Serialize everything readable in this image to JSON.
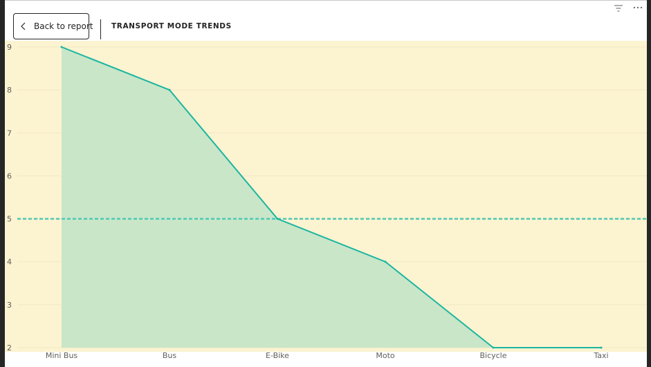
{
  "header": {
    "back_label": "Back to report",
    "title": "TRANSPORT MODE TRENDS"
  },
  "icons": {
    "back": "chevron-left-icon",
    "filter": "filter-icon",
    "more": "more-options-icon"
  },
  "colors": {
    "plot_background": "#fcf3d1",
    "line": "#1ab5a0",
    "area_fill": "#c9e6c8",
    "reference_line": "#4fc8b4"
  },
  "chart_data": {
    "type": "area",
    "categories": [
      "Mini Bus",
      "Bus",
      "E-Bike",
      "Moto",
      "Bicycle",
      "Taxi"
    ],
    "values": [
      9,
      8,
      5,
      4,
      2,
      2
    ],
    "ylim": [
      2,
      9
    ],
    "yticks": [
      "2",
      "3",
      "4",
      "5",
      "6",
      "7",
      "8",
      "9"
    ],
    "reference_line": 5,
    "grid": true,
    "legend": "none"
  }
}
